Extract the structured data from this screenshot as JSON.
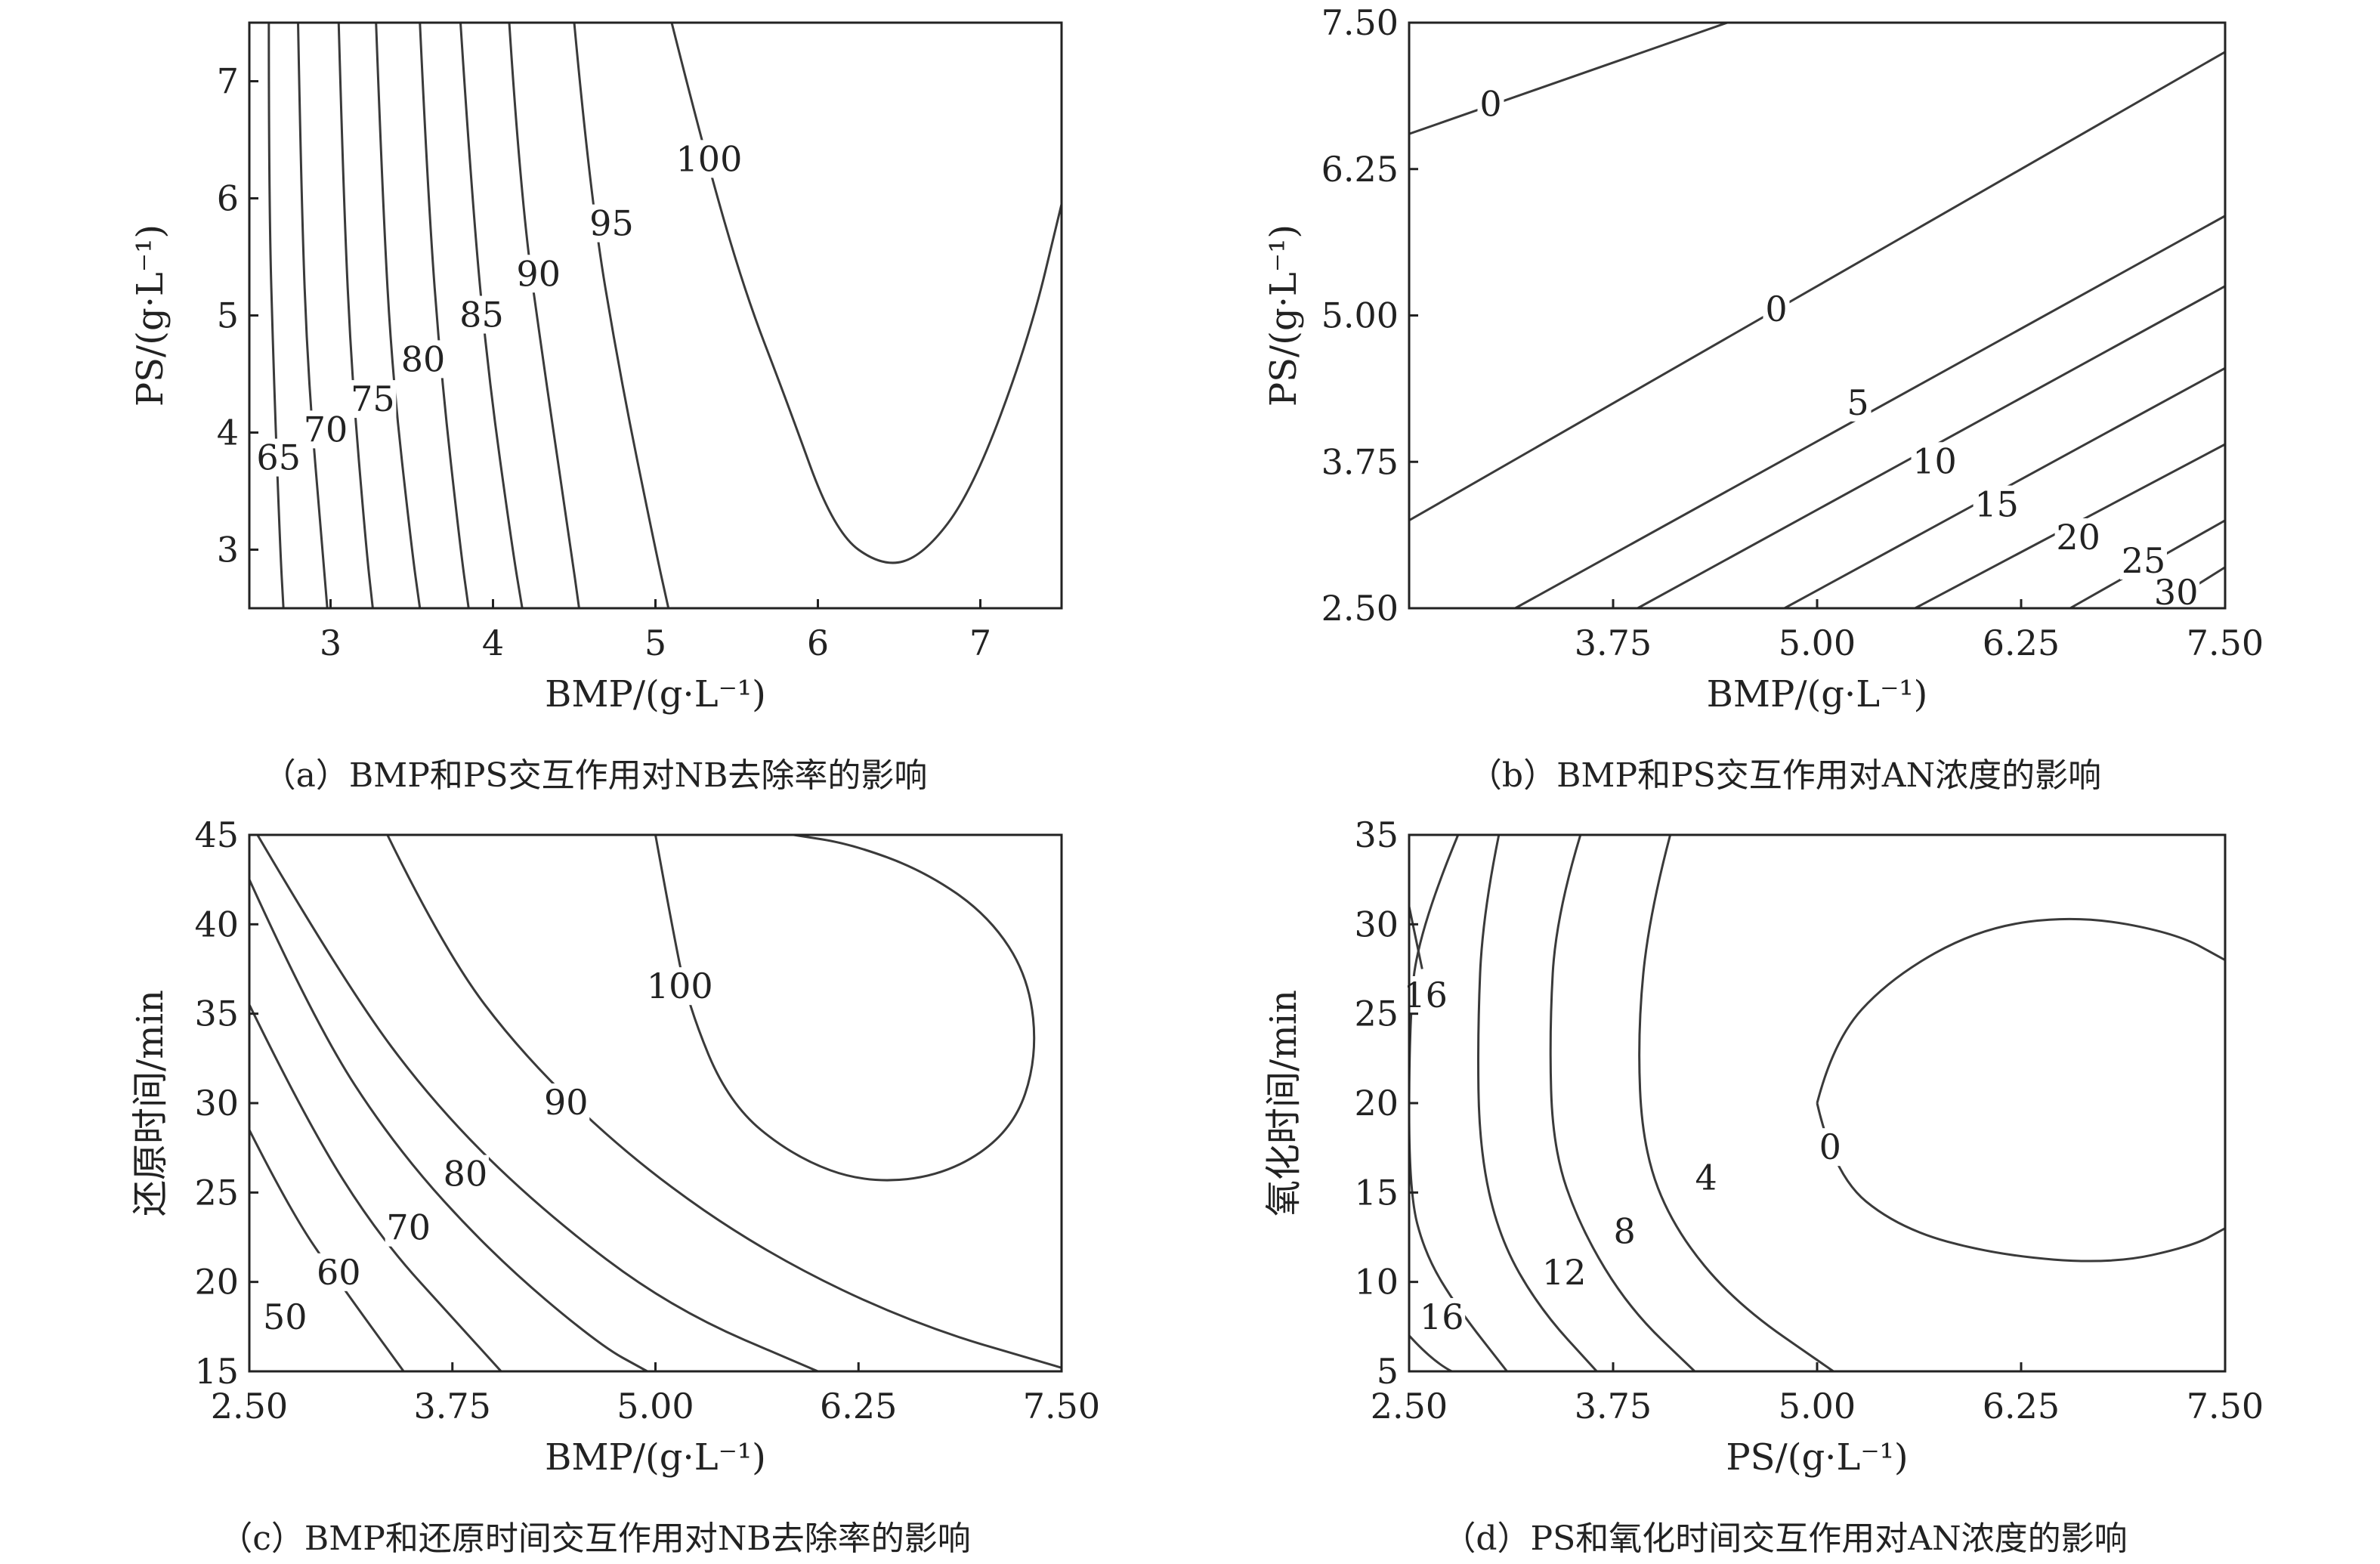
{
  "chart_data": [
    {
      "type": "contour",
      "caption": "（a）BMP和PS交互作用对NB去除率的影响",
      "xlabel": "BMP/(g·L⁻¹)",
      "ylabel": "PS/(g·L⁻¹)",
      "xlim": [
        2.5,
        7.5
      ],
      "ylim": [
        2.5,
        7.5
      ],
      "xticks": [
        "3",
        "4",
        "5",
        "6",
        "7"
      ],
      "yticks": [
        "3",
        "4",
        "5",
        "6",
        "7"
      ],
      "xtick_values": [
        3,
        4,
        5,
        6,
        7
      ],
      "ytick_values": [
        3,
        4,
        5,
        6,
        7
      ],
      "contours": [
        {
          "level": "65",
          "points": [
            [
              2.62,
              7.5
            ],
            [
              2.62,
              6.0
            ],
            [
              2.65,
              4.5
            ],
            [
              2.69,
              3.0
            ],
            [
              2.71,
              2.5
            ]
          ],
          "label_at": [
            2.68,
            3.78
          ]
        },
        {
          "level": "70",
          "points": [
            [
              2.8,
              7.5
            ],
            [
              2.82,
              6.0
            ],
            [
              2.86,
              4.5
            ],
            [
              2.95,
              3.0
            ],
            [
              2.98,
              2.5
            ]
          ],
          "label_at": [
            2.97,
            4.02
          ]
        },
        {
          "level": "75",
          "points": [
            [
              3.05,
              7.5
            ],
            [
              3.08,
              6.0
            ],
            [
              3.13,
              4.5
            ],
            [
              3.22,
              3.0
            ],
            [
              3.26,
              2.5
            ]
          ],
          "label_at": [
            3.26,
            4.28
          ]
        },
        {
          "level": "80",
          "points": [
            [
              3.28,
              7.5
            ],
            [
              3.32,
              6.0
            ],
            [
              3.38,
              4.5
            ],
            [
              3.5,
              3.0
            ],
            [
              3.55,
              2.5
            ]
          ],
          "label_at": [
            3.57,
            4.62
          ]
        },
        {
          "level": "85",
          "points": [
            [
              3.55,
              7.5
            ],
            [
              3.6,
              6.0
            ],
            [
              3.68,
              4.5
            ],
            [
              3.8,
              3.0
            ],
            [
              3.85,
              2.5
            ]
          ],
          "label_at": [
            3.93,
            5.0
          ]
        },
        {
          "level": "90",
          "points": [
            [
              3.8,
              7.5
            ],
            [
              3.87,
              6.0
            ],
            [
              3.97,
              4.5
            ],
            [
              4.12,
              3.0
            ],
            [
              4.18,
              2.5
            ]
          ],
          "label_at": [
            4.28,
            5.35
          ]
        },
        {
          "level": "95",
          "points": [
            [
              4.1,
              7.5
            ],
            [
              4.17,
              6.0
            ],
            [
              4.32,
              4.5
            ],
            [
              4.48,
              3.0
            ],
            [
              4.53,
              2.5
            ]
          ],
          "label_at": [
            4.73,
            5.78
          ]
        },
        {
          "level": "100 (outer)",
          "points": [
            [
              4.5,
              7.5
            ],
            [
              4.6,
              6.0
            ],
            [
              4.78,
              4.5
            ],
            [
              5.0,
              3.0
            ],
            [
              5.08,
              2.5
            ]
          ],
          "label_at": null
        },
        {
          "level": "100",
          "points": [
            [
              5.1,
              7.5
            ],
            [
              5.3,
              6.4
            ],
            [
              5.55,
              5.2
            ],
            [
              5.8,
              4.3
            ],
            [
              6.1,
              3.15
            ],
            [
              6.4,
              2.85
            ],
            [
              6.65,
              2.95
            ],
            [
              6.95,
              3.5
            ],
            [
              7.3,
              4.8
            ],
            [
              7.5,
              5.95
            ]
          ],
          "label_at": [
            5.33,
            6.33
          ]
        }
      ]
    },
    {
      "type": "contour",
      "caption": "（b）BMP和PS交互作用对AN浓度的影响",
      "xlabel": "BMP/(g·L⁻¹)",
      "ylabel": "PS/(g·L⁻¹)",
      "xlim": [
        2.5,
        7.5
      ],
      "ylim": [
        2.5,
        7.5
      ],
      "xticks": [
        "3.75",
        "5.00",
        "6.25",
        "7.50"
      ],
      "yticks": [
        "2.50",
        "3.75",
        "5.00",
        "6.25",
        "7.50"
      ],
      "xtick_values": [
        3.75,
        5.0,
        6.25,
        7.5
      ],
      "ytick_values": [
        2.5,
        3.75,
        5.0,
        6.25,
        7.5
      ],
      "contours": [
        {
          "level": "0",
          "points": [
            [
              2.5,
              6.55
            ],
            [
              4.45,
              7.5
            ]
          ],
          "label_at": [
            3.0,
            6.8
          ]
        },
        {
          "level": "0",
          "points": [
            [
              2.5,
              3.25
            ],
            [
              7.5,
              7.25
            ]
          ],
          "label_at": [
            4.75,
            5.05
          ]
        },
        {
          "level": "5",
          "points": [
            [
              3.15,
              2.5
            ],
            [
              7.5,
              5.85
            ]
          ],
          "label_at": [
            5.25,
            4.25
          ]
        },
        {
          "level": "10",
          "points": [
            [
              3.9,
              2.5
            ],
            [
              7.5,
              5.25
            ]
          ],
          "label_at": [
            5.72,
            3.75
          ]
        },
        {
          "level": "15",
          "points": [
            [
              4.8,
              2.5
            ],
            [
              7.5,
              4.55
            ]
          ],
          "label_at": [
            6.1,
            3.38
          ]
        },
        {
          "level": "20",
          "points": [
            [
              5.6,
              2.5
            ],
            [
              7.5,
              3.9
            ]
          ],
          "label_at": [
            6.6,
            3.1
          ]
        },
        {
          "level": "25",
          "points": [
            [
              6.55,
              2.5
            ],
            [
              7.5,
              3.25
            ]
          ],
          "label_at": [
            7.0,
            2.9
          ]
        },
        {
          "level": "30",
          "points": [
            [
              7.1,
              2.5
            ],
            [
              7.5,
              2.85
            ]
          ],
          "label_at": [
            7.2,
            2.63
          ]
        }
      ]
    },
    {
      "type": "contour",
      "caption": "（c）BMP和还原时间交互作用对NB去除率的影响",
      "xlabel": "BMP/(g·L⁻¹)",
      "ylabel": "还原时间/min",
      "xlim": [
        2.5,
        7.5
      ],
      "ylim": [
        15,
        45
      ],
      "xticks": [
        "2.50",
        "3.75",
        "5.00",
        "6.25",
        "7.50"
      ],
      "yticks": [
        "15",
        "20",
        "25",
        "30",
        "35",
        "40",
        "45"
      ],
      "xtick_values": [
        2.5,
        3.75,
        5.0,
        6.25,
        7.5
      ],
      "ytick_values": [
        15,
        20,
        25,
        30,
        35,
        40,
        45
      ],
      "contours": [
        {
          "level": "50",
          "points": [
            [
              2.5,
              28.5
            ],
            [
              2.75,
              24.0
            ],
            [
              3.05,
              20.0
            ],
            [
              3.45,
              15.0
            ]
          ],
          "label_at": [
            2.72,
            18.0
          ]
        },
        {
          "level": "60",
          "points": [
            [
              2.5,
              35.5
            ],
            [
              2.85,
              29.0
            ],
            [
              3.3,
              22.5
            ],
            [
              3.8,
              17.5
            ],
            [
              4.05,
              15.0
            ]
          ],
          "label_at": [
            3.05,
            20.5
          ]
        },
        {
          "level": "70",
          "points": [
            [
              2.5,
              42.5
            ],
            [
              2.9,
              34.5
            ],
            [
              3.4,
              27.5
            ],
            [
              4.0,
              21.5
            ],
            [
              4.65,
              16.5
            ],
            [
              4.95,
              15.0
            ]
          ],
          "label_at": [
            3.48,
            23.0
          ]
        },
        {
          "level": "80",
          "points": [
            [
              2.55,
              45.0
            ],
            [
              3.1,
              36.5
            ],
            [
              3.65,
              29.8
            ],
            [
              4.3,
              24.0
            ],
            [
              5.1,
              18.5
            ],
            [
              6.0,
              15.0
            ]
          ],
          "label_at": [
            3.83,
            26.0
          ]
        },
        {
          "level": "90",
          "points": [
            [
              3.35,
              45.0
            ],
            [
              3.7,
              38.5
            ],
            [
              4.2,
              32.5
            ],
            [
              4.9,
              26.5
            ],
            [
              5.7,
              21.5
            ],
            [
              6.6,
              17.6
            ],
            [
              7.5,
              15.2
            ]
          ],
          "label_at": [
            4.45,
            30.0
          ]
        },
        {
          "level": "100",
          "points": [
            [
              5.0,
              45.0
            ],
            [
              5.1,
              40.0
            ],
            [
              5.2,
              35.5
            ],
            [
              5.45,
              30.0
            ],
            [
              5.85,
              27.0
            ],
            [
              6.3,
              25.5
            ],
            [
              6.8,
              26.0
            ],
            [
              7.2,
              28.5
            ],
            [
              7.35,
              32.5
            ],
            [
              7.3,
              37.0
            ],
            [
              7.05,
              40.5
            ],
            [
              6.65,
              43.0
            ],
            [
              6.2,
              44.5
            ],
            [
              5.85,
              45.0
            ]
          ],
          "label_at": [
            5.15,
            36.5
          ]
        }
      ]
    },
    {
      "type": "contour",
      "caption": "（d）PS和氧化时间交互作用对AN浓度的影响",
      "xlabel": "PS/(g·L⁻¹)",
      "ylabel": "氧化时间/min",
      "xlim": [
        2.5,
        7.5
      ],
      "ylim": [
        5,
        35
      ],
      "xticks": [
        "2.50",
        "3.75",
        "5.00",
        "6.25",
        "7.50"
      ],
      "yticks": [
        "5",
        "10",
        "15",
        "20",
        "25",
        "30",
        "35"
      ],
      "xtick_values": [
        2.5,
        3.75,
        5.0,
        6.25,
        7.5
      ],
      "ytick_values": [
        5,
        10,
        15,
        20,
        25,
        30,
        35
      ],
      "contours": [
        {
          "level": "16",
          "points": [
            [
              2.5,
              31.0
            ],
            [
              2.58,
              27.5
            ]
          ],
          "label_at": [
            2.6,
            26.0
          ]
        },
        {
          "level": "16",
          "points": [
            [
              2.5,
              7.0
            ],
            [
              2.75,
              4.5
            ],
            [
              3.05,
              5.0
            ]
          ],
          "label_at": null
        },
        {
          "level": "16",
          "points": [
            [
              2.8,
              35.0
            ],
            [
              2.55,
              29.5
            ],
            [
              2.5,
              24.0
            ],
            [
              2.5,
              15.0
            ],
            [
              2.6,
              11.5
            ],
            [
              2.8,
              8.5
            ],
            [
              3.1,
              5.0
            ]
          ],
          "label_at": [
            2.7,
            8.0
          ]
        },
        {
          "level": "12",
          "points": [
            [
              3.05,
              35.0
            ],
            [
              2.95,
              30.5
            ],
            [
              2.92,
              24.0
            ],
            [
              2.93,
              17.5
            ],
            [
              3.05,
              12.5
            ],
            [
              3.3,
              8.5
            ],
            [
              3.65,
              5.0
            ]
          ],
          "label_at": [
            3.45,
            10.5
          ]
        },
        {
          "level": "8",
          "points": [
            [
              3.55,
              35.0
            ],
            [
              3.4,
              30.5
            ],
            [
              3.36,
              24.0
            ],
            [
              3.38,
              17.5
            ],
            [
              3.55,
              13.0
            ],
            [
              3.85,
              8.5
            ],
            [
              4.25,
              5.0
            ]
          ],
          "label_at": [
            3.82,
            12.8
          ]
        },
        {
          "level": "4",
          "points": [
            [
              4.1,
              35.0
            ],
            [
              3.97,
              30.5
            ],
            [
              3.9,
              24.0
            ],
            [
              3.93,
              17.5
            ],
            [
              4.12,
              13.0
            ],
            [
              4.5,
              8.8
            ],
            [
              5.1,
              5.0
            ]
          ],
          "label_at": [
            4.32,
            15.8
          ]
        },
        {
          "level": "0",
          "points": [
            [
              5.0,
              20.0
            ],
            [
              5.1,
              23.5
            ],
            [
              5.45,
              27.0
            ],
            [
              6.0,
              29.8
            ],
            [
              6.6,
              30.5
            ],
            [
              7.2,
              29.5
            ],
            [
              7.5,
              28.0
            ]
          ],
          "label_at": [
            5.08,
            17.5
          ]
        },
        {
          "level": "0",
          "points": [
            [
              5.0,
              20.0
            ],
            [
              5.1,
              16.0
            ],
            [
              5.5,
              13.0
            ],
            [
              6.1,
              11.5
            ],
            [
              6.8,
              11.0
            ],
            [
              7.3,
              12.0
            ],
            [
              7.5,
              13.0
            ]
          ],
          "label_at": null
        }
      ]
    }
  ]
}
